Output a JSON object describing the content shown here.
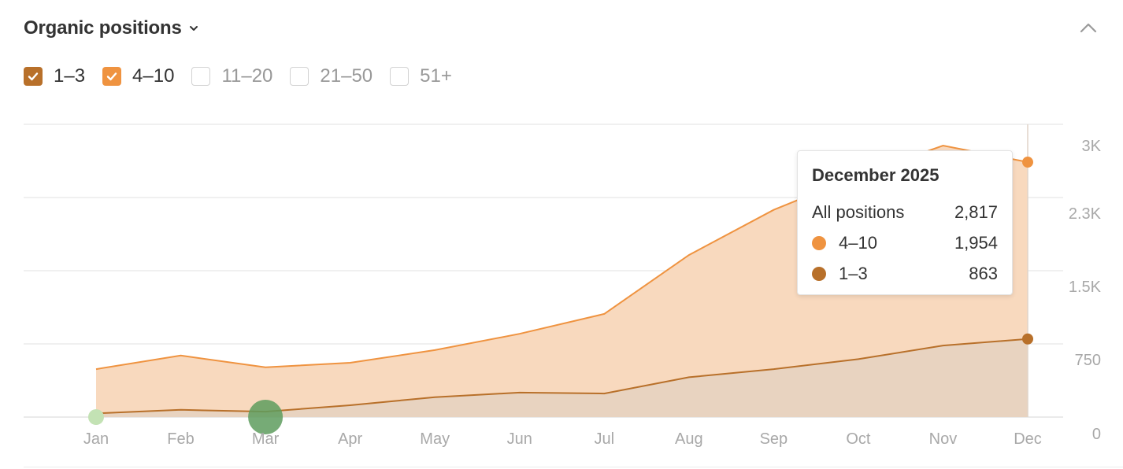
{
  "widget": {
    "title": "Organic positions",
    "chevron_icon": "chevron-down-icon",
    "collapse_icon": "chevron-up-icon"
  },
  "filters": [
    {
      "label": "1–3",
      "checked": true,
      "color": "#b8702a"
    },
    {
      "label": "4–10",
      "checked": true,
      "color": "#ef9340"
    },
    {
      "label": "11–20",
      "checked": false,
      "color": "#d2d2d2"
    },
    {
      "label": "21–50",
      "checked": false,
      "color": "#d2d2d2"
    },
    {
      "label": "51+",
      "checked": false,
      "color": "#d2d2d2"
    }
  ],
  "tooltip": {
    "title": "December 2025",
    "rows": [
      {
        "label": "All positions",
        "value": "2,817",
        "dot": ""
      },
      {
        "label": "4–10",
        "value": "1,954",
        "dot": "#ef9340"
      },
      {
        "label": "1–3",
        "value": "863",
        "dot": "#b8702a"
      }
    ]
  },
  "chart_data": {
    "type": "area",
    "stacked": true,
    "categories": [
      "Jan",
      "Feb",
      "Mar",
      "Apr",
      "May",
      "Jun",
      "Jul",
      "Aug",
      "Sep",
      "Oct",
      "Nov",
      "Dec"
    ],
    "series": [
      {
        "name": "1–3",
        "color": "#b8702a",
        "fill": "#e8d3c0",
        "values": [
          40,
          80,
          60,
          130,
          220,
          270,
          260,
          440,
          530,
          640,
          790,
          863
        ]
      },
      {
        "name": "4–10",
        "color": "#ef9340",
        "fill": "#f8d9be",
        "values": [
          490,
          600,
          490,
          470,
          520,
          650,
          880,
          1350,
          1760,
          2030,
          2210,
          1954
        ]
      }
    ],
    "y_ticks": [
      0,
      750,
      1500,
      2250,
      3000
    ],
    "y_tick_labels": [
      "0",
      "750",
      "1.5K",
      "2.3K",
      "3K"
    ],
    "ylim": [
      0,
      3000
    ],
    "y_axis_side": "right",
    "grid": true,
    "highlight_index": 11,
    "annotations": [
      {
        "type": "marker",
        "category": "Jan",
        "color": "#c3e2b4"
      },
      {
        "type": "marker",
        "category": "Mar",
        "color": "#5e9c5e"
      }
    ]
  }
}
